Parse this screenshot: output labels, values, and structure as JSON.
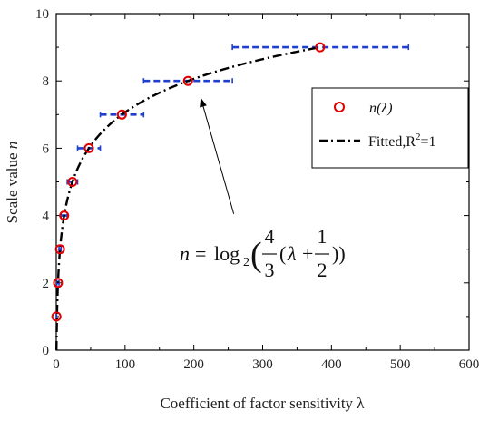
{
  "chart_data": {
    "type": "scatter",
    "xlabel": "Coefficient of factor sensitivity λ",
    "ylabel_main": "Scale value ",
    "ylabel_var": "n",
    "xlim": [
      0,
      600
    ],
    "ylim": [
      0,
      10
    ],
    "xticks": [
      0,
      100,
      200,
      300,
      400,
      500,
      600
    ],
    "yticks": [
      0,
      2,
      4,
      6,
      8,
      10
    ],
    "xtick_labels": [
      "0",
      "100",
      "200",
      "300",
      "400",
      "500",
      "600"
    ],
    "ytick_labels": [
      "0",
      "2",
      "4",
      "6",
      "8",
      "10"
    ],
    "grid": false,
    "legend_position": "top-right",
    "series": [
      {
        "name": "n(λ)",
        "kind": "markers",
        "marker": "open-circle",
        "color": "#e00000",
        "points": [
          {
            "x": 0.25,
            "y": 1
          },
          {
            "x": 2.5,
            "y": 2
          },
          {
            "x": 5.5,
            "y": 3
          },
          {
            "x": 11.5,
            "y": 4
          },
          {
            "x": 23.5,
            "y": 5
          },
          {
            "x": 47.5,
            "y": 6
          },
          {
            "x": 95.5,
            "y": 7
          },
          {
            "x": 191.5,
            "y": 8
          },
          {
            "x": 383.5,
            "y": 9
          }
        ]
      },
      {
        "name": "Fitted,R²=1",
        "legend_main": "Fitted,R",
        "legend_sup": "2",
        "legend_tail": "=1",
        "kind": "curve",
        "style": "dash-dot",
        "color": "#000000",
        "formula": "n = log2(4/3(λ + 1/2))"
      },
      {
        "name": "intervals",
        "kind": "horizontal-dashed-segments",
        "color": "#1f3fcf",
        "segments": [
          {
            "y": 1,
            "x_start": 0,
            "x_end": 0.5
          },
          {
            "y": 2,
            "x_start": 1,
            "x_end": 4
          },
          {
            "y": 3,
            "x_start": 4,
            "x_end": 7
          },
          {
            "y": 4,
            "x_start": 7,
            "x_end": 16
          },
          {
            "y": 5,
            "x_start": 16,
            "x_end": 31
          },
          {
            "y": 6,
            "x_start": 31,
            "x_end": 64
          },
          {
            "y": 7,
            "x_start": 64,
            "x_end": 127
          },
          {
            "y": 8,
            "x_start": 127,
            "x_end": 256
          },
          {
            "y": 9,
            "x_start": 256,
            "x_end": 512
          }
        ]
      }
    ],
    "annotation": {
      "pointer_from": {
        "x": 258,
        "y": 4.05
      },
      "pointer_to": {
        "x": 210,
        "y": 7.5
      }
    }
  },
  "formula_display": {
    "lhs": "n",
    "equals": "=",
    "log": "log",
    "log_base": "2",
    "open_paren": "(",
    "frac1_num": "4",
    "frac1_den": "3",
    "inner_open": "(",
    "lambda": "λ",
    "plus": "+",
    "frac2_num": "1",
    "frac2_den": "2",
    "close_parens": "))"
  }
}
